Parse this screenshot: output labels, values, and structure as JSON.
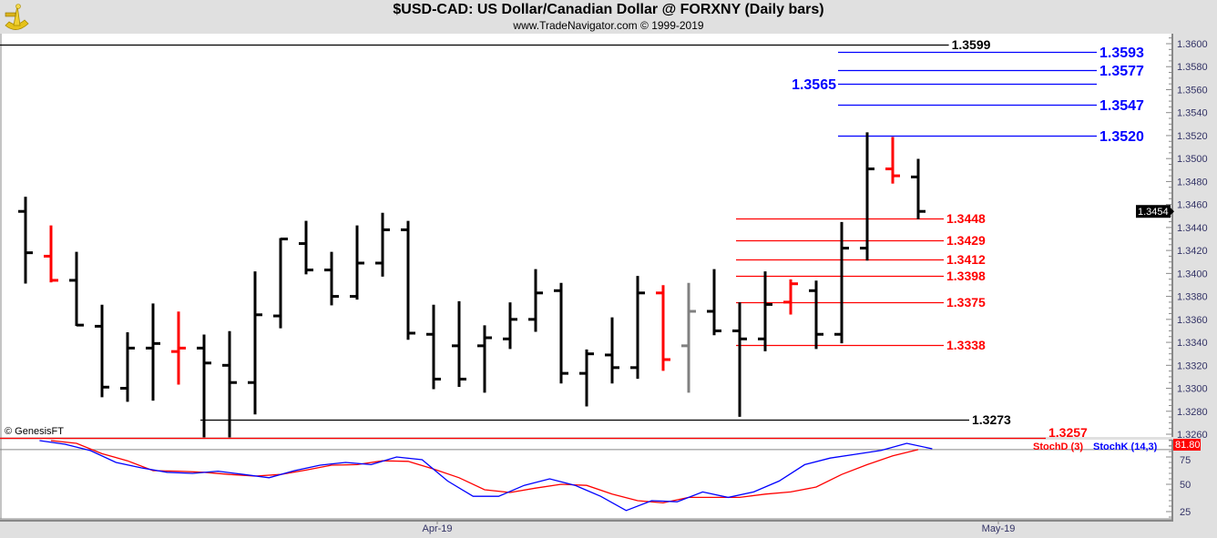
{
  "header": {
    "title": "$USD-CAD:  US Dollar/Canadian Dollar @ FORXNY  (Daily bars)",
    "subtitle": "www.TradeNavigator.com © 1999-2019",
    "logo": "sextant-logo"
  },
  "copyright": "© GenesisFT",
  "colors": {
    "up": "#000000",
    "down": "#ff0000",
    "neutral": "#808080",
    "blue": "#0000ff",
    "red": "#ff0000",
    "bg": "#ffffff",
    "frame": "#e0e0e0"
  },
  "chart_data": [
    {
      "type": "ohlc",
      "title": "$USD-CAD Daily bars",
      "ylim": [
        1.325,
        1.361
      ],
      "y_ticks": [
        "1.3260",
        "1.3280",
        "1.3300",
        "1.3320",
        "1.3340",
        "1.3360",
        "1.3380",
        "1.3400",
        "1.3420",
        "1.3440",
        "1.3460",
        "1.3480",
        "1.3500",
        "1.3520",
        "1.3540",
        "1.3560",
        "1.3580",
        "1.3600"
      ],
      "x_labels": [
        {
          "label": "Apr-19",
          "bar": 16
        },
        {
          "label": "May-19",
          "bar": 38
        }
      ],
      "last_price": "1.3454",
      "bars": [
        {
          "o": 1.3454,
          "h": 1.3466,
          "l": 1.3392,
          "c": 1.3418,
          "color": "up"
        },
        {
          "o": 1.3415,
          "h": 1.3441,
          "l": 1.3393,
          "c": 1.3394,
          "color": "down"
        },
        {
          "o": 1.3394,
          "h": 1.3418,
          "l": 1.3355,
          "c": 1.3355,
          "color": "up"
        },
        {
          "o": 1.3354,
          "h": 1.3372,
          "l": 1.3293,
          "c": 1.3301,
          "color": "up"
        },
        {
          "o": 1.33,
          "h": 1.3348,
          "l": 1.3289,
          "c": 1.3335,
          "color": "up"
        },
        {
          "o": 1.3335,
          "h": 1.3373,
          "l": 1.329,
          "c": 1.3339,
          "color": "up"
        },
        {
          "o": 1.3332,
          "h": 1.3366,
          "l": 1.3304,
          "c": 1.3335,
          "color": "down"
        },
        {
          "o": 1.3335,
          "h": 1.3346,
          "l": 1.3258,
          "c": 1.3322,
          "color": "up"
        },
        {
          "o": 1.332,
          "h": 1.3349,
          "l": 1.3258,
          "c": 1.3305,
          "color": "up"
        },
        {
          "o": 1.3305,
          "h": 1.3401,
          "l": 1.3278,
          "c": 1.3364,
          "color": "up"
        },
        {
          "o": 1.3363,
          "h": 1.343,
          "l": 1.3353,
          "c": 1.343,
          "color": "up"
        },
        {
          "o": 1.3426,
          "h": 1.3445,
          "l": 1.34,
          "c": 1.3403,
          "color": "up"
        },
        {
          "o": 1.3403,
          "h": 1.3418,
          "l": 1.3373,
          "c": 1.338,
          "color": "up"
        },
        {
          "o": 1.338,
          "h": 1.3441,
          "l": 1.3378,
          "c": 1.3409,
          "color": "up"
        },
        {
          "o": 1.3409,
          "h": 1.3452,
          "l": 1.3398,
          "c": 1.3438,
          "color": "up"
        },
        {
          "o": 1.3438,
          "h": 1.3445,
          "l": 1.3343,
          "c": 1.3348,
          "color": "up"
        },
        {
          "o": 1.3347,
          "h": 1.3372,
          "l": 1.33,
          "c": 1.3308,
          "color": "up"
        },
        {
          "o": 1.3337,
          "h": 1.3375,
          "l": 1.3302,
          "c": 1.3308,
          "color": "up"
        },
        {
          "o": 1.3337,
          "h": 1.3354,
          "l": 1.3297,
          "c": 1.3344,
          "color": "up"
        },
        {
          "o": 1.3343,
          "h": 1.3374,
          "l": 1.3335,
          "c": 1.336,
          "color": "up"
        },
        {
          "o": 1.336,
          "h": 1.3403,
          "l": 1.335,
          "c": 1.3383,
          "color": "up"
        },
        {
          "o": 1.3385,
          "h": 1.3391,
          "l": 1.3305,
          "c": 1.3313,
          "color": "up"
        },
        {
          "o": 1.3313,
          "h": 1.3333,
          "l": 1.3285,
          "c": 1.333,
          "color": "up"
        },
        {
          "o": 1.3329,
          "h": 1.3361,
          "l": 1.3305,
          "c": 1.3318,
          "color": "up"
        },
        {
          "o": 1.3318,
          "h": 1.3397,
          "l": 1.3309,
          "c": 1.3383,
          "color": "up"
        },
        {
          "o": 1.3383,
          "h": 1.3389,
          "l": 1.3316,
          "c": 1.3325,
          "color": "down"
        },
        {
          "o": 1.3337,
          "h": 1.3391,
          "l": 1.3297,
          "c": 1.3367,
          "color": "neutral"
        },
        {
          "o": 1.3367,
          "h": 1.3403,
          "l": 1.3347,
          "c": 1.335,
          "color": "up"
        },
        {
          "o": 1.335,
          "h": 1.3374,
          "l": 1.3276,
          "c": 1.3343,
          "color": "up"
        },
        {
          "o": 1.3343,
          "h": 1.3401,
          "l": 1.3333,
          "c": 1.3373,
          "color": "up"
        },
        {
          "o": 1.3375,
          "h": 1.3394,
          "l": 1.3365,
          "c": 1.3391,
          "color": "down"
        },
        {
          "o": 1.3385,
          "h": 1.3393,
          "l": 1.3335,
          "c": 1.3347,
          "color": "up"
        },
        {
          "o": 1.3347,
          "h": 1.3444,
          "l": 1.334,
          "c": 1.3422,
          "color": "up"
        },
        {
          "o": 1.3422,
          "h": 1.3522,
          "l": 1.3412,
          "c": 1.3491,
          "color": "up"
        },
        {
          "o": 1.3491,
          "h": 1.3518,
          "l": 1.3479,
          "c": 1.3485,
          "color": "down"
        },
        {
          "o": 1.3484,
          "h": 1.3499,
          "l": 1.3448,
          "c": 1.3454,
          "color": "up"
        }
      ],
      "levels": [
        {
          "value": "1.3599",
          "color": "black",
          "from_bar": -1,
          "to_bar": 36.2,
          "label_side": "right"
        },
        {
          "value": "1.3593",
          "color": "blue",
          "from_bar": 32,
          "to_bar": 42,
          "label_side": "right"
        },
        {
          "value": "1.3577",
          "color": "blue",
          "from_bar": 32,
          "to_bar": 42,
          "label_side": "right"
        },
        {
          "value": "1.3565",
          "color": "blue",
          "from_bar": 32,
          "to_bar": 42,
          "label_side": "left"
        },
        {
          "value": "1.3547",
          "color": "blue",
          "from_bar": 32,
          "to_bar": 42,
          "label_side": "right"
        },
        {
          "value": "1.3520",
          "color": "blue",
          "from_bar": 32,
          "to_bar": 42,
          "label_side": "right"
        },
        {
          "value": "1.3448",
          "color": "red",
          "from_bar": 28,
          "to_bar": 36,
          "label_side": "right"
        },
        {
          "value": "1.3429",
          "color": "red",
          "from_bar": 28,
          "to_bar": 36,
          "label_side": "right"
        },
        {
          "value": "1.3412",
          "color": "red",
          "from_bar": 28,
          "to_bar": 36,
          "label_side": "right"
        },
        {
          "value": "1.3398",
          "color": "red",
          "from_bar": 28,
          "to_bar": 36,
          "label_side": "right"
        },
        {
          "value": "1.3375",
          "color": "red",
          "from_bar": 28,
          "to_bar": 36,
          "label_side": "right"
        },
        {
          "value": "1.3338",
          "color": "red",
          "from_bar": 28,
          "to_bar": 36,
          "label_side": "right"
        },
        {
          "value": "1.3273",
          "color": "black",
          "from_bar": 7,
          "to_bar": 37,
          "label_side": "right"
        },
        {
          "value": "1.3257",
          "color": "red",
          "from_bar": -1,
          "to_bar": 40,
          "label_side": "right"
        }
      ]
    },
    {
      "type": "line",
      "title": "Stochastic",
      "ylim": [
        20,
        90
      ],
      "y_ticks": [
        "75",
        "50",
        "25"
      ],
      "last_value": "81.80",
      "series": [
        {
          "name": "StochD (3)",
          "color": "red",
          "start_bar": 1,
          "values": [
            90,
            87.5,
            78,
            71.5,
            62.5,
            62,
            61,
            59,
            57.5,
            59,
            63,
            67.5,
            68,
            71.5,
            71,
            64,
            56,
            45,
            42.5,
            46.5,
            50,
            49,
            41,
            35,
            33,
            38,
            38,
            38,
            41,
            43,
            47.5,
            59,
            68,
            76,
            81.8
          ]
        },
        {
          "name": "StochK (14,3)",
          "color": "blue",
          "start_bar": 0.55,
          "values": [
            90,
            86.7,
            80.8,
            70,
            65,
            61,
            60,
            62,
            59,
            56,
            62.5,
            67.5,
            70,
            68,
            75,
            72.5,
            53,
            39,
            39,
            49,
            55,
            49,
            39,
            26,
            35,
            34,
            43,
            38,
            43,
            53,
            68,
            74,
            77.5,
            81,
            87.5,
            82.5
          ]
        }
      ]
    }
  ]
}
